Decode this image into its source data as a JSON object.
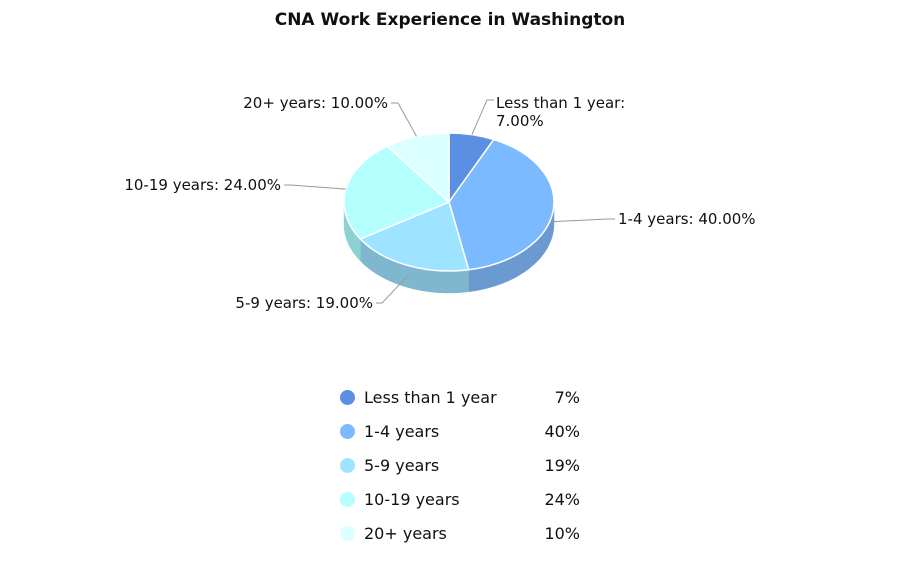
{
  "chart_data": {
    "type": "pie",
    "title": "CNA Work Experience in Washington",
    "three_d": true,
    "start_angle_deg": 0,
    "direction": "clockwise",
    "slices": [
      {
        "name": "Less than 1 year",
        "value": 7,
        "label_lines": [
          "Less than 1 year:",
          "7.00%"
        ],
        "legend_value": "7%",
        "color": "#5b8fe2",
        "side_color": "#4a78c0"
      },
      {
        "name": "1-4 years",
        "value": 40,
        "label_lines": [
          "1-4 years: 40.00%"
        ],
        "legend_value": "40%",
        "color": "#7cbaff",
        "side_color": "#6a9ad0"
      },
      {
        "name": "5-9 years",
        "value": 19,
        "label_lines": [
          "5-9 years: 19.00%"
        ],
        "legend_value": "19%",
        "color": "#9ee3ff",
        "side_color": "#7fb7cf"
      },
      {
        "name": "10-19 years",
        "value": 24,
        "label_lines": [
          "10-19 years: 24.00%"
        ],
        "legend_value": "24%",
        "color": "#b4fffd",
        "side_color": "#8ed1d2"
      },
      {
        "name": "20+ years",
        "value": 10,
        "label_lines": [
          "20+ years: 10.00%"
        ],
        "legend_value": "10%",
        "color": "#dcffff",
        "side_color": "#b8dede"
      }
    ],
    "legend_position": "bottom"
  }
}
